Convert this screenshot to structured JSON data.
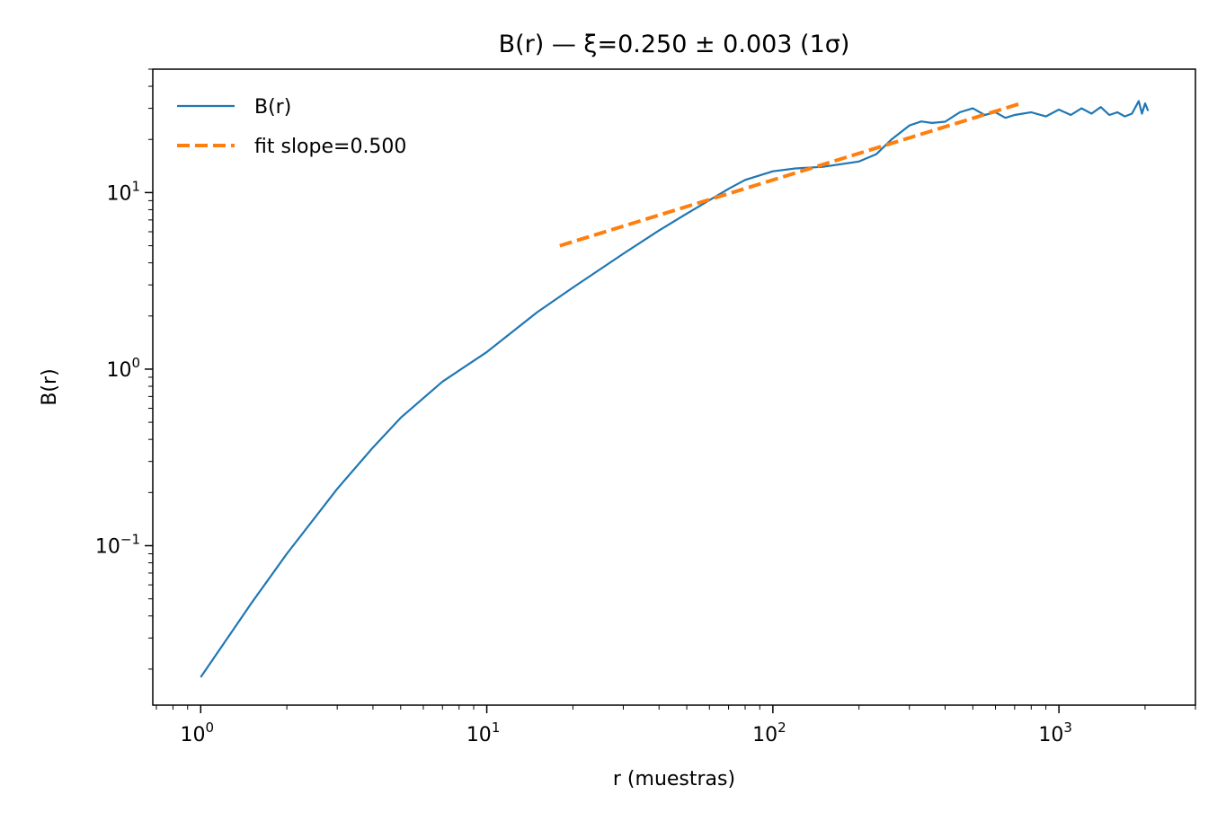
{
  "chart_data": {
    "type": "line",
    "title": "B(r) — ξ=0.250 ± 0.003 (1σ)",
    "xlabel": "r (muestras)",
    "ylabel": "B(r)",
    "xscale": "log",
    "yscale": "log",
    "xlim": [
      0.68,
      3000
    ],
    "ylim": [
      0.0125,
      50
    ],
    "x_ticks": [
      {
        "value": 1,
        "base": "10",
        "exp": "0"
      },
      {
        "value": 10,
        "base": "10",
        "exp": "1"
      },
      {
        "value": 100,
        "base": "10",
        "exp": "2"
      },
      {
        "value": 1000,
        "base": "10",
        "exp": "3"
      }
    ],
    "y_ticks": [
      {
        "value": 0.1,
        "base": "10",
        "exp": "−1"
      },
      {
        "value": 1,
        "base": "10",
        "exp": "0"
      },
      {
        "value": 10,
        "base": "10",
        "exp": "1"
      }
    ],
    "grid": false,
    "legend_position": "top-left",
    "series": [
      {
        "name": "B(r)",
        "color": "#1f77b4",
        "style": "solid",
        "x": [
          1,
          1.5,
          2,
          3,
          4,
          5,
          7,
          10,
          15,
          20,
          30,
          40,
          50,
          70,
          80,
          100,
          120,
          150,
          200,
          230,
          260,
          300,
          330,
          360,
          400,
          450,
          500,
          550,
          600,
          650,
          700,
          800,
          900,
          1000,
          1100,
          1200,
          1300,
          1400,
          1500,
          1600,
          1700,
          1800,
          1900,
          1950,
          2000,
          2050
        ],
        "y": [
          0.018,
          0.047,
          0.09,
          0.21,
          0.36,
          0.53,
          0.85,
          1.25,
          2.1,
          2.9,
          4.5,
          6.1,
          7.6,
          10.5,
          11.8,
          13.2,
          13.7,
          14.0,
          15.0,
          16.5,
          20.0,
          24.0,
          25.3,
          24.8,
          25.2,
          28.5,
          30.0,
          27.5,
          28.5,
          26.5,
          27.5,
          28.5,
          27.0,
          29.5,
          27.5,
          30.0,
          28.0,
          30.5,
          27.5,
          28.5,
          27.0,
          28.0,
          33.0,
          28.0,
          32.0,
          29.0
        ]
      },
      {
        "name": "fit slope=0.500",
        "color": "#ff7f0e",
        "style": "dashed",
        "x": [
          18,
          750
        ],
        "y": [
          5.0,
          32.3
        ]
      }
    ]
  }
}
